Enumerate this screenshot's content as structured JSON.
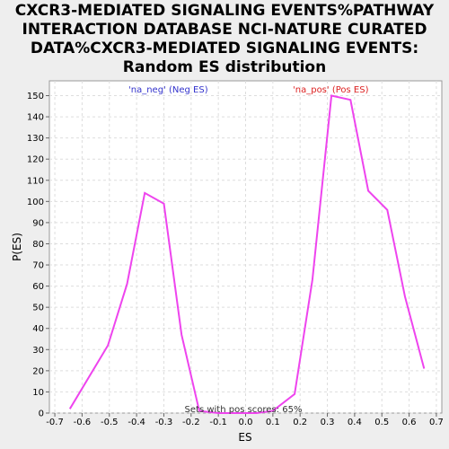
{
  "chart_data": {
    "type": "line",
    "title_lines": [
      "CXCR3-MEDIATED SIGNALING EVENTS%PATHWAY",
      "INTERACTION DATABASE NCI-NATURE CURATED",
      "DATA%CXCR3-MEDIATED SIGNALING EVENTS:",
      "Random ES distribution"
    ],
    "xlabel": "ES",
    "ylabel": "P(ES)",
    "xlim": [
      -0.72,
      0.72
    ],
    "ylim": [
      0,
      157
    ],
    "grid": true,
    "x_ticks": [
      -0.7,
      -0.6,
      -0.5,
      -0.4,
      -0.3,
      -0.2,
      -0.1,
      0.0,
      0.1,
      0.2,
      0.3,
      0.4,
      0.5,
      0.6,
      0.7
    ],
    "x_tick_labels": [
      "-0.7",
      "-0.6",
      "-0.5",
      "-0.4",
      "-0.3",
      "-0.2",
      "-0.1",
      "0.0",
      "0.1",
      "0.2",
      "0.3",
      "0.4",
      "0.5",
      "0.6",
      "0.7"
    ],
    "y_ticks": [
      0,
      10,
      20,
      30,
      40,
      50,
      60,
      70,
      80,
      90,
      100,
      110,
      120,
      130,
      140,
      150
    ],
    "y_tick_labels": [
      "0",
      "10",
      "20",
      "30",
      "40",
      "50",
      "60",
      "70",
      "80",
      "90",
      "100",
      "110",
      "120",
      "130",
      "140",
      "150"
    ],
    "series": [
      {
        "color": "#ee44ee",
        "x": [
          -0.645,
          -0.505,
          -0.435,
          -0.37,
          -0.3,
          -0.235,
          -0.17,
          -0.1,
          -0.04,
          0.04,
          0.1,
          0.18,
          0.245,
          0.315,
          0.385,
          0.45,
          0.52,
          0.585,
          0.655
        ],
        "y": [
          2,
          32,
          61,
          104,
          99,
          37,
          1,
          0,
          0,
          0,
          1,
          9,
          63,
          150,
          148,
          105,
          96,
          55,
          21
        ]
      }
    ],
    "annotations": {
      "neg": {
        "text": "'na_neg' (Neg ES)",
        "color": "#3333cc"
      },
      "pos": {
        "text": "'na_pos' (Pos ES)",
        "color": "#dd2222"
      },
      "footer": {
        "text": "Sets with pos scores: 65%",
        "color": "#333333"
      }
    }
  }
}
